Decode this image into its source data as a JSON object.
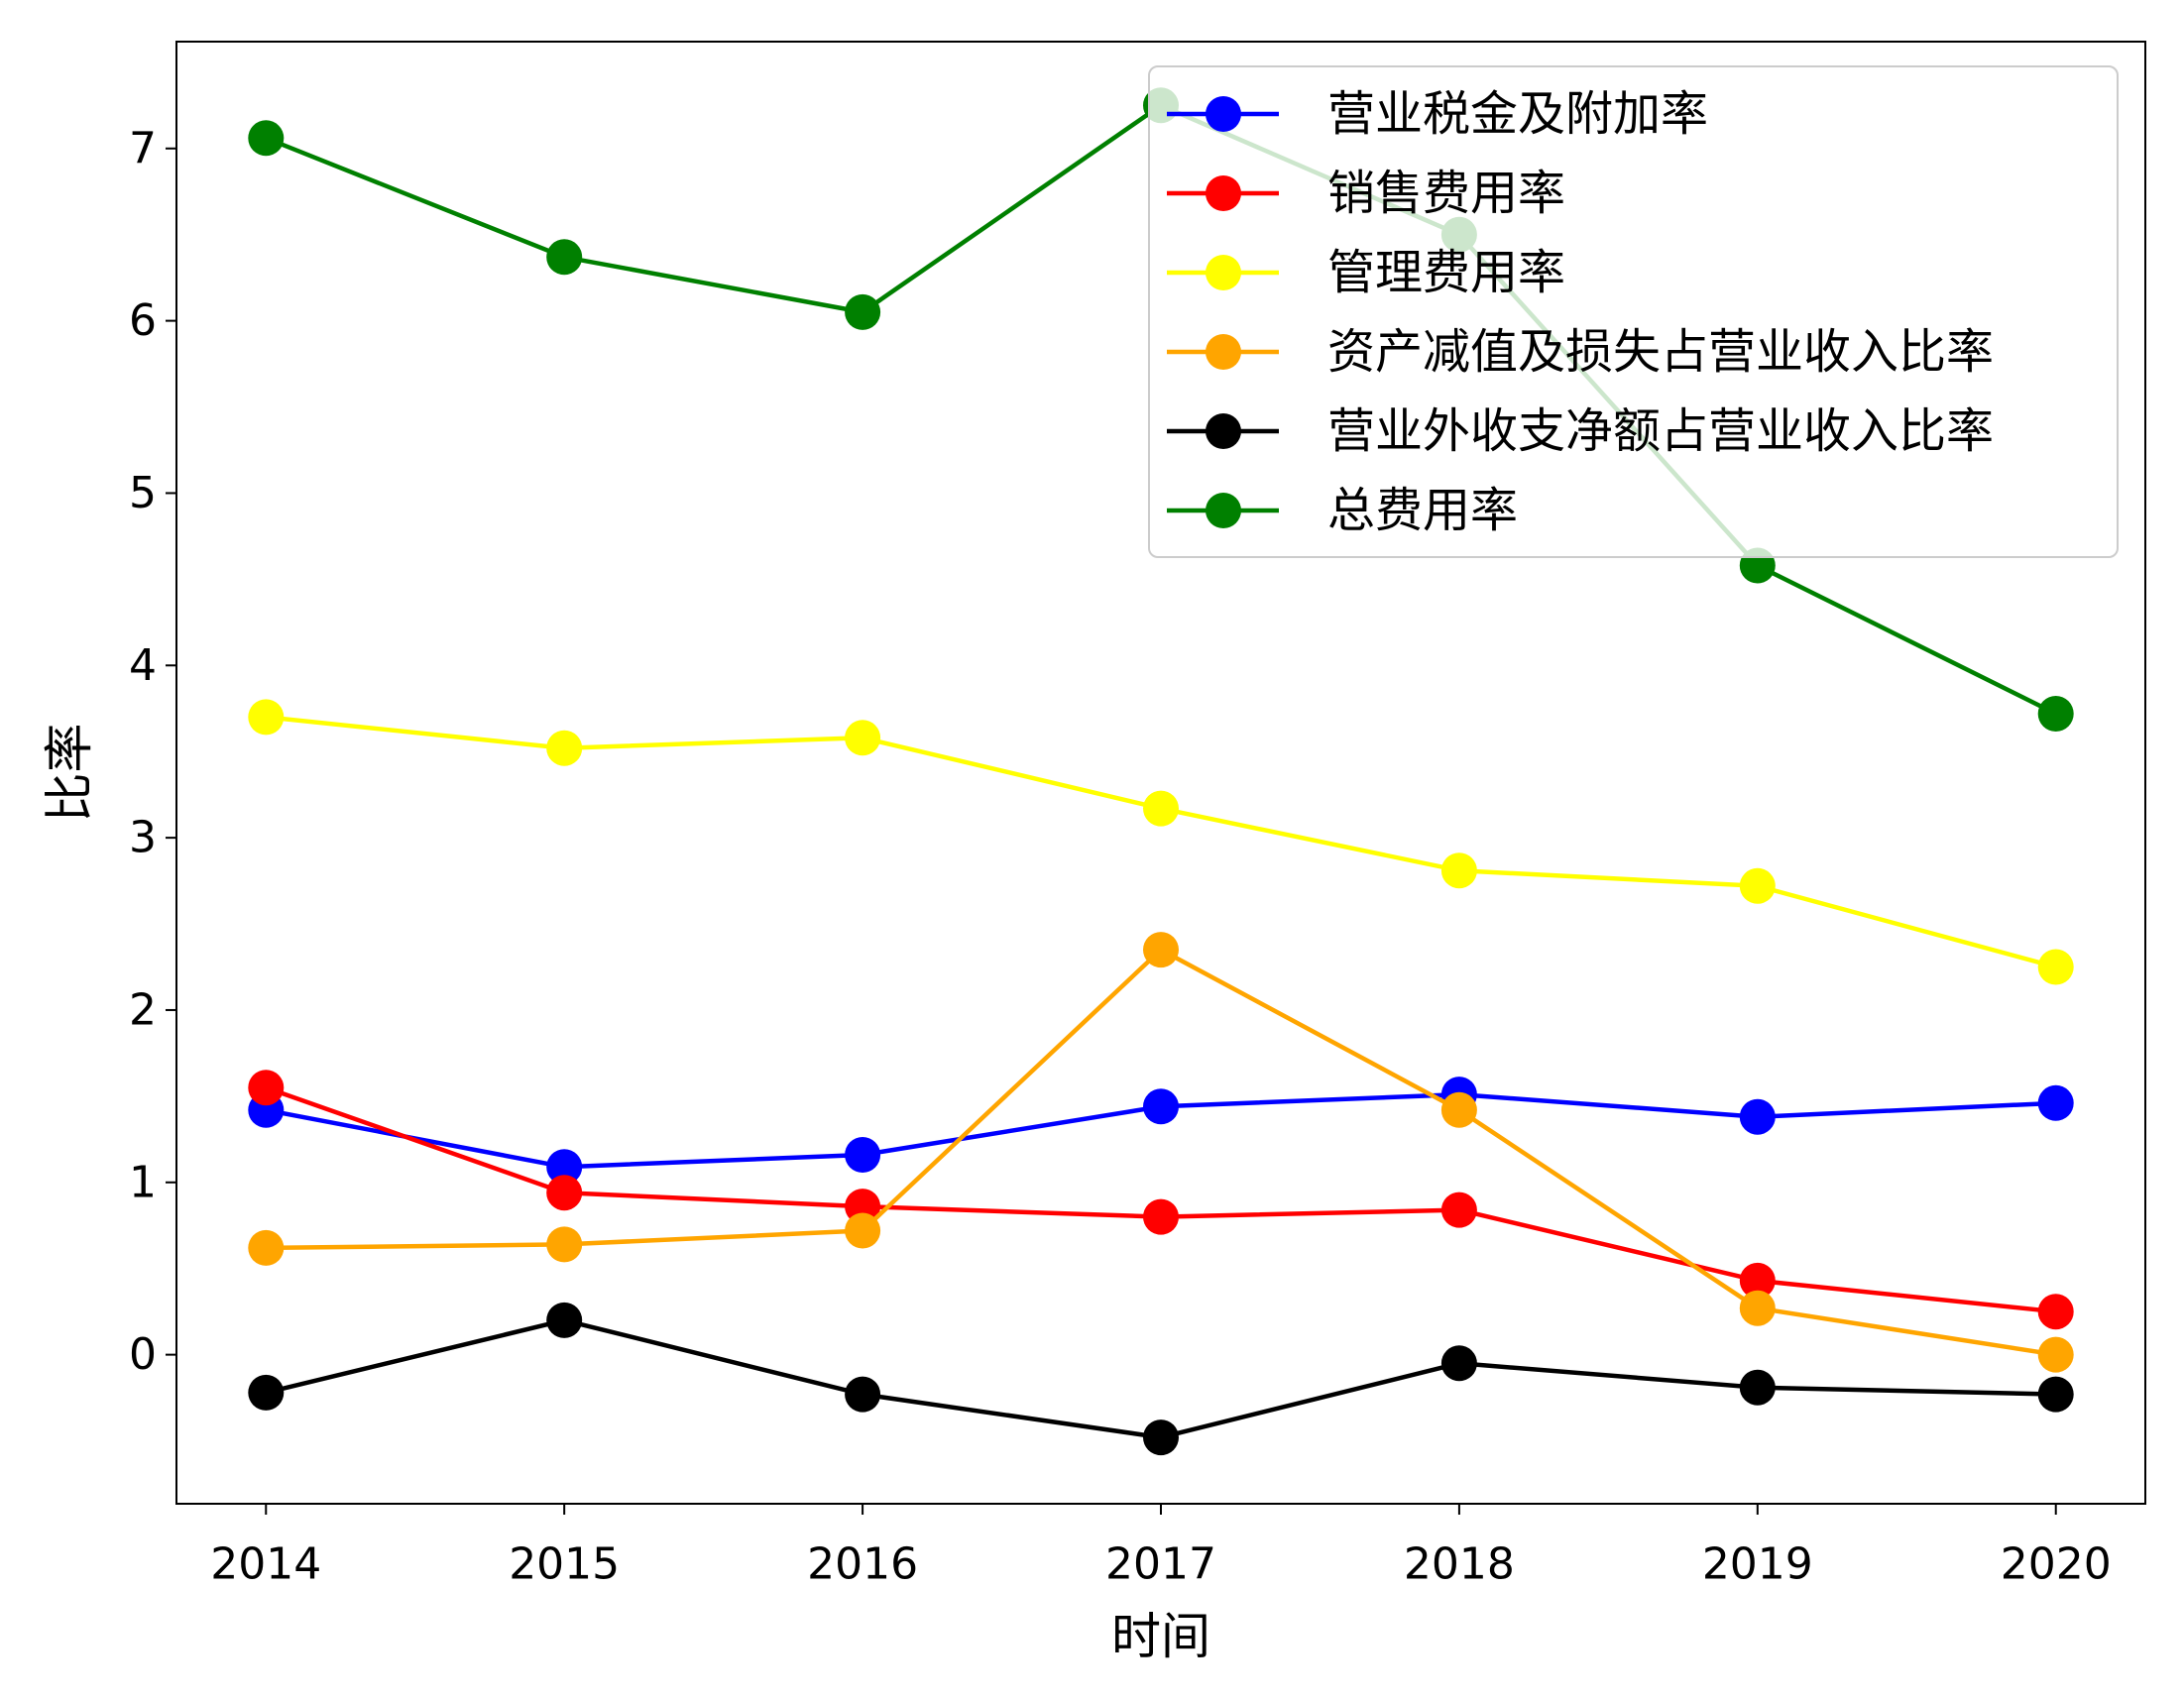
{
  "chart_data": {
    "type": "line",
    "x": [
      2014,
      2015,
      2016,
      2017,
      2018,
      2019,
      2020
    ],
    "xticks": [
      2014,
      2015,
      2016,
      2017,
      2018,
      2019,
      2020
    ],
    "yticks": [
      0,
      1,
      2,
      3,
      4,
      5,
      6,
      7
    ],
    "xlim": [
      2013.7,
      2020.3
    ],
    "ylim": [
      -0.865,
      7.62
    ],
    "xlabel": "时间",
    "ylabel": "比率",
    "grid": false,
    "legend_position": "upper right",
    "marker": "circle",
    "series": [
      {
        "name": "营业税金及附加率",
        "color": "#0000ff",
        "values": [
          1.42,
          1.09,
          1.16,
          1.44,
          1.51,
          1.38,
          1.46
        ]
      },
      {
        "name": "销售费用率",
        "color": "#ff0000",
        "values": [
          1.55,
          0.94,
          0.86,
          0.8,
          0.84,
          0.43,
          0.25
        ]
      },
      {
        "name": "管理费用率",
        "color": "#ffff00",
        "values": [
          3.7,
          3.52,
          3.58,
          3.17,
          2.81,
          2.72,
          2.25
        ]
      },
      {
        "name": "资产减值及损失占营业收入比率",
        "color": "#ffa500",
        "values": [
          0.62,
          0.64,
          0.72,
          2.35,
          1.42,
          0.27,
          0.0
        ]
      },
      {
        "name": "营业外收支净额占营业收入比率",
        "color": "#000000",
        "values": [
          -0.22,
          0.2,
          -0.23,
          -0.48,
          -0.05,
          -0.19,
          -0.23
        ]
      },
      {
        "name": "总费用率",
        "color": "#008000",
        "values": [
          7.06,
          6.37,
          6.05,
          7.25,
          6.5,
          4.58,
          3.72
        ]
      }
    ]
  }
}
